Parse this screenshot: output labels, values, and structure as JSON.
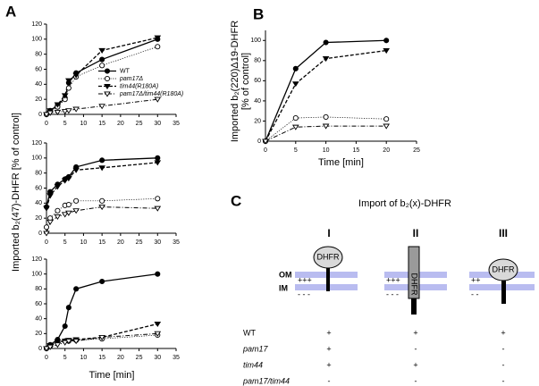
{
  "panel_labels": [
    "A",
    "B",
    "C"
  ],
  "panel_a": {
    "y_label": "Imported b₂(47)-DHFR [% of control]",
    "x_label": "Time [min]"
  },
  "chart_data": [
    {
      "type": "line",
      "xlim": [
        0,
        35
      ],
      "ylim": [
        0,
        120
      ],
      "xticks": [
        0,
        5,
        10,
        15,
        20,
        25,
        30,
        35
      ],
      "yticks": [
        0,
        20,
        40,
        60,
        80,
        100,
        120
      ],
      "legend": "center-right",
      "x": [
        0,
        1,
        3,
        5,
        6,
        8,
        15,
        30
      ],
      "series": [
        {
          "name": "WT",
          "color": "#000000",
          "marker": "circle",
          "filled": true,
          "line": "solid",
          "values": [
            0,
            5,
            12,
            22,
            42,
            55,
            73,
            100
          ]
        },
        {
          "name": "pam17Δ",
          "color": "#000000",
          "marker": "circle",
          "filled": false,
          "line": "dotted",
          "values": [
            0,
            4,
            10,
            20,
            35,
            50,
            65,
            90
          ]
        },
        {
          "name": "tim44(R180A)",
          "color": "#000000",
          "marker": "triangle-down",
          "filled": true,
          "line": "dashed",
          "values": [
            0,
            5,
            13,
            25,
            45,
            52,
            85,
            102
          ]
        },
        {
          "name": "pam17Δ/tim44(R180A)",
          "color": "#000000",
          "marker": "triangle-down",
          "filled": false,
          "line": "dashdot",
          "values": [
            0,
            2,
            3,
            4,
            5,
            7,
            11,
            20
          ]
        }
      ]
    },
    {
      "type": "line",
      "xlim": [
        0,
        35
      ],
      "ylim": [
        0,
        120
      ],
      "xticks": [
        0,
        5,
        10,
        15,
        20,
        25,
        30,
        35
      ],
      "yticks": [
        0,
        20,
        40,
        60,
        80,
        100,
        120
      ],
      "x": [
        0,
        1,
        3,
        5,
        6,
        8,
        15,
        30
      ],
      "series": [
        {
          "color": "#000000",
          "marker": "circle",
          "filled": true,
          "line": "solid",
          "values": [
            35,
            55,
            65,
            72,
            75,
            88,
            97,
            100
          ]
        },
        {
          "color": "#000000",
          "marker": "circle",
          "filled": false,
          "line": "dotted",
          "values": [
            8,
            20,
            30,
            37,
            38,
            43,
            43,
            46
          ]
        },
        {
          "color": "#000000",
          "marker": "triangle-down",
          "filled": true,
          "line": "dashed",
          "values": [
            33,
            50,
            62,
            70,
            73,
            84,
            87,
            94
          ]
        },
        {
          "color": "#000000",
          "marker": "triangle-down",
          "filled": false,
          "line": "dashdot",
          "values": [
            0,
            15,
            22,
            25,
            27,
            30,
            35,
            33
          ]
        }
      ]
    },
    {
      "type": "line",
      "xlim": [
        0,
        35
      ],
      "ylim": [
        0,
        120
      ],
      "xticks": [
        0,
        5,
        10,
        15,
        20,
        25,
        30,
        35
      ],
      "yticks": [
        0,
        20,
        40,
        60,
        80,
        100,
        120
      ],
      "x": [
        0,
        1,
        3,
        5,
        6,
        8,
        15,
        30
      ],
      "series": [
        {
          "color": "#000000",
          "marker": "circle",
          "filled": true,
          "line": "solid",
          "values": [
            0,
            5,
            12,
            30,
            55,
            80,
            90,
            100
          ]
        },
        {
          "color": "#000000",
          "marker": "circle",
          "filled": false,
          "line": "dotted",
          "values": [
            0,
            3,
            8,
            10,
            10,
            11,
            13,
            18
          ]
        },
        {
          "color": "#000000",
          "marker": "triangle-down",
          "filled": true,
          "line": "dashed",
          "values": [
            0,
            4,
            9,
            10,
            11,
            12,
            15,
            33
          ]
        },
        {
          "color": "#000000",
          "marker": "triangle-down",
          "filled": false,
          "line": "dashdot",
          "values": [
            0,
            2,
            5,
            8,
            10,
            10,
            15,
            20
          ]
        }
      ]
    },
    {
      "type": "line",
      "xlim": [
        0,
        25
      ],
      "ylim": [
        0,
        110
      ],
      "xticks": [
        0,
        5,
        10,
        15,
        20,
        25
      ],
      "yticks": [
        0,
        20,
        40,
        60,
        80,
        100
      ],
      "ylabel": [
        "Imported b₂(220)Δ19-DHFR",
        "[% of control]"
      ],
      "xlabel": "Time [min]",
      "x": [
        0,
        5,
        10,
        20
      ],
      "series": [
        {
          "color": "#000000",
          "marker": "circle",
          "filled": true,
          "line": "solid",
          "values": [
            0,
            72,
            98,
            100
          ]
        },
        {
          "color": "#000000",
          "marker": "circle",
          "filled": false,
          "line": "dotted",
          "values": [
            0,
            23,
            24,
            22
          ]
        },
        {
          "color": "#000000",
          "marker": "triangle-down",
          "filled": true,
          "line": "dashed",
          "values": [
            0,
            57,
            82,
            90
          ]
        },
        {
          "color": "#000000",
          "marker": "triangle-down",
          "filled": false,
          "line": "dashdot",
          "values": [
            0,
            14,
            15,
            15
          ]
        }
      ]
    }
  ],
  "diagram": {
    "title": "Import of b₂(x)-DHFR",
    "membranes": [
      "OM",
      "IM"
    ],
    "columns": [
      {
        "numeral": "I",
        "protein": "DHFR",
        "plus": "+++",
        "minus": "- - -"
      },
      {
        "numeral": "II",
        "protein": "DHFR",
        "plus": "+++",
        "minus": "- - -"
      },
      {
        "numeral": "III",
        "protein": "DHFR",
        "plus": "++",
        "minus": "- -"
      }
    ],
    "rows": [
      {
        "label": "WT",
        "cells": [
          "+",
          "+",
          "+"
        ]
      },
      {
        "label": "pam17",
        "cells": [
          "+",
          "-",
          "-"
        ]
      },
      {
        "label": "tim44",
        "cells": [
          "+",
          "+",
          "-"
        ]
      },
      {
        "label": "pam17/tim44",
        "cells": [
          "-",
          "-",
          "-"
        ]
      }
    ]
  }
}
